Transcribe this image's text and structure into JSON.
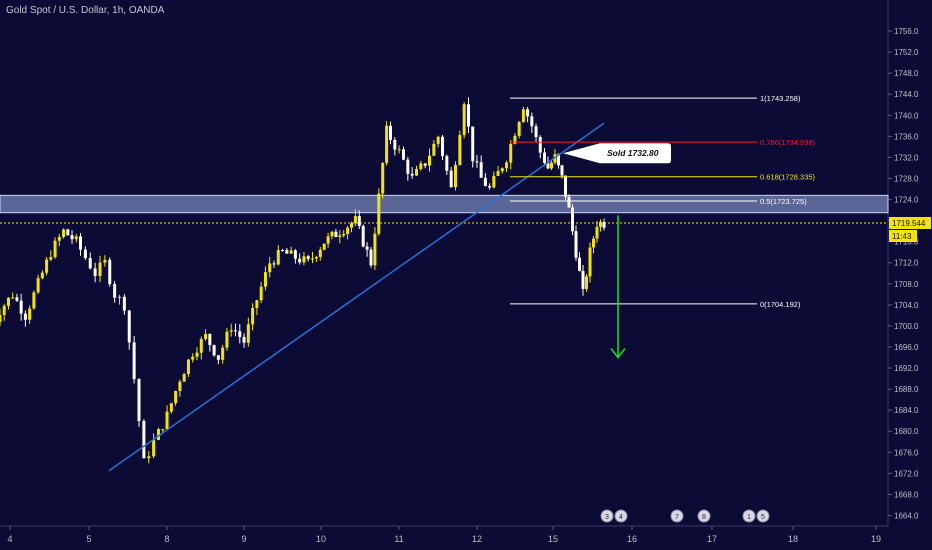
{
  "title": "Gold Spot / U.S. Dollar, 1h, OANDA",
  "current_price_label": "1719.544",
  "countdown_label": "11:43",
  "sold_annotation": "Sold 1732.80",
  "colors": {
    "background": "#0b0b36",
    "bull": "#f2e40a",
    "bear": "#ffffff",
    "trendline": "#2b6fd8",
    "zone": "#9fb0e6",
    "fib_neutral": "#ffffff",
    "fib_red": "#ff1a1a",
    "fib_yellow": "#f2e40a",
    "target_arrow": "#22d31e",
    "axis_text": "#bfbfc8"
  },
  "chart_data": {
    "type": "candlestick",
    "title": "Gold Spot / U.S. Dollar, 1h, OANDA",
    "ylim": [
      1662,
      1760
    ],
    "y_ticks": [
      1664.0,
      1668.0,
      1672.0,
      1676.0,
      1680.0,
      1684.0,
      1688.0,
      1692.0,
      1696.0,
      1700.0,
      1704.0,
      1708.0,
      1712.0,
      1716.0,
      1720.0,
      1724.0,
      1728.0,
      1732.0,
      1736.0,
      1740.0,
      1744.0,
      1748.0,
      1752.0,
      1756.0
    ],
    "x_ticks": [
      "4",
      "5",
      "8",
      "9",
      "10",
      "11",
      "12",
      "15",
      "16",
      "17",
      "18",
      "19"
    ],
    "close_path": [
      [
        "4",
        1698
      ],
      [
        "4",
        1703
      ],
      [
        "4",
        1706
      ],
      [
        "4",
        1702
      ],
      [
        "4",
        1708
      ],
      [
        "4",
        1714
      ],
      [
        "4",
        1718
      ],
      [
        "5",
        1716
      ],
      [
        "5",
        1713
      ],
      [
        "5",
        1710
      ],
      [
        "5",
        1712
      ],
      [
        "5",
        1706
      ],
      [
        "5",
        1704
      ],
      [
        "5",
        1690
      ],
      [
        "5",
        1674
      ],
      [
        "8",
        1678
      ],
      [
        "8",
        1683
      ],
      [
        "8",
        1690
      ],
      [
        "8",
        1695
      ],
      [
        "8",
        1698
      ],
      [
        "8",
        1694
      ],
      [
        "9",
        1700
      ],
      [
        "9",
        1697
      ],
      [
        "9",
        1705
      ],
      [
        "9",
        1712
      ],
      [
        "9",
        1714
      ],
      [
        "9",
        1713
      ],
      [
        "10",
        1712
      ],
      [
        "10",
        1716
      ],
      [
        "10",
        1718
      ],
      [
        "10",
        1720
      ],
      [
        "10",
        1712
      ],
      [
        "11",
        1737
      ],
      [
        "11",
        1733
      ],
      [
        "11",
        1728
      ],
      [
        "11",
        1731
      ],
      [
        "11",
        1736
      ],
      [
        "11",
        1726
      ],
      [
        "12",
        1743
      ],
      [
        "12",
        1732
      ],
      [
        "12",
        1728
      ],
      [
        "12",
        1726
      ],
      [
        "12",
        1729
      ],
      [
        "12",
        1732
      ],
      [
        "12",
        1737
      ],
      [
        "12",
        1742
      ],
      [
        "12",
        1738
      ],
      [
        "15",
        1733
      ],
      [
        "15",
        1730
      ],
      [
        "15",
        1732
      ],
      [
        "15",
        1728
      ],
      [
        "15",
        1722
      ],
      [
        "15",
        1714
      ],
      [
        "15",
        1706
      ],
      [
        "15",
        1714
      ],
      [
        "15",
        1719.544
      ]
    ],
    "trendline": {
      "from": [
        "8",
        1674
      ],
      "to": [
        "12",
        1738
      ]
    },
    "supply_zone": [
      1721.5,
      1724.8
    ],
    "current_price": 1719.544,
    "fibonacci": [
      {
        "level": "1",
        "price": 1743.258,
        "label": "1(1743.258)"
      },
      {
        "level": "0.786",
        "price": 1734.898,
        "label": "0.786(1734.898)"
      },
      {
        "level": "0.618",
        "price": 1728.335,
        "label": "0.618(1728.335)"
      },
      {
        "level": "0.5",
        "price": 1723.725,
        "label": "0.5(1723.725)"
      },
      {
        "level": "0",
        "price": 1704.192,
        "label": "0(1704.192)"
      }
    ],
    "sold_level": 1732.8,
    "target_arrow": {
      "from": 1721,
      "to": 1694
    },
    "event_markers": [
      {
        "label": "3",
        "x": "15"
      },
      {
        "label": "4",
        "x": "15"
      },
      {
        "label": "7",
        "x": "16"
      },
      {
        "label": "8",
        "x": "17"
      },
      {
        "label": "1",
        "x": "17"
      },
      {
        "label": "5",
        "x": "18"
      }
    ]
  }
}
